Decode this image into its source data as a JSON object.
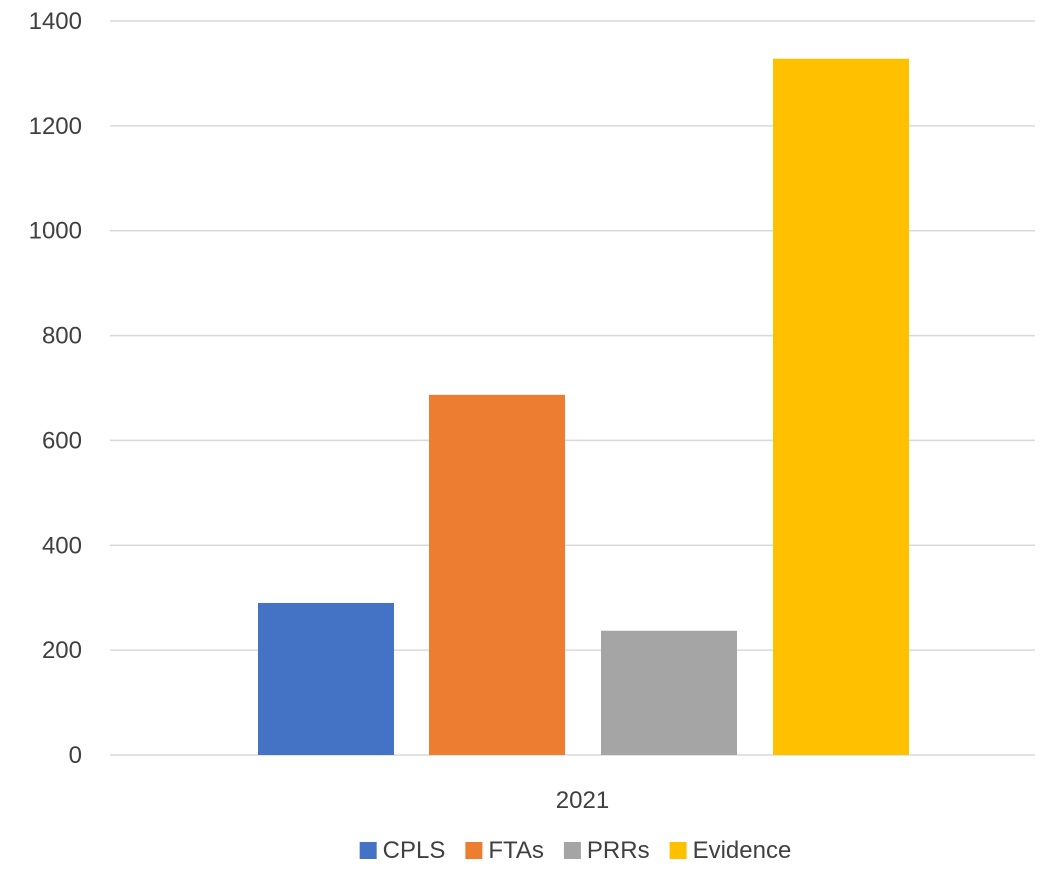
{
  "chart_data": {
    "type": "bar",
    "categories": [
      "2021"
    ],
    "series": [
      {
        "name": "CPLS",
        "values": [
          290
        ],
        "color": "#4472C4"
      },
      {
        "name": "FTAs",
        "values": [
          687
        ],
        "color": "#ED7D31"
      },
      {
        "name": "PRRs",
        "values": [
          237
        ],
        "color": "#A5A5A5"
      },
      {
        "name": "Evidence",
        "values": [
          1328
        ],
        "color": "#FFC000"
      }
    ],
    "title": "",
    "xlabel": "",
    "ylabel": "",
    "ylim": [
      0,
      1400
    ],
    "yticks": [
      "0",
      "200",
      "400",
      "600",
      "800",
      "1000",
      "1200",
      "1400"
    ],
    "grid": true,
    "legend_position": "bottom"
  }
}
